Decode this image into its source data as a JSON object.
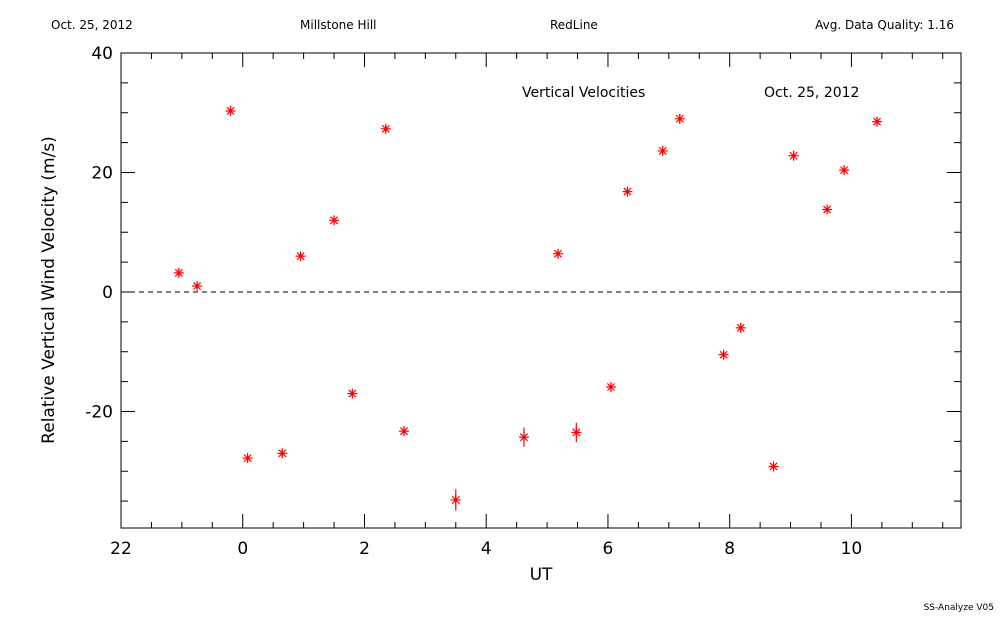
{
  "header": {
    "date": "Oct. 25, 2012",
    "site": "Millstone Hill",
    "instrument": "RedLine",
    "quality": "Avg. Data Quality: 1.16"
  },
  "footer": {
    "software": "SS-Analyze V05"
  },
  "chart_data": {
    "type": "scatter",
    "title": "Vertical Velocities",
    "subtitle": "Oct. 25, 2012",
    "xlabel": "UT",
    "ylabel": "Relative Vertical Wind Velocity (m/s)",
    "xlim": [
      -2.0,
      11.8
    ],
    "ylim": [
      -39.5,
      40
    ],
    "x_ticks": [
      22,
      0,
      2,
      4,
      6,
      8,
      10
    ],
    "y_ticks": [
      40,
      20,
      0,
      -20
    ],
    "reference_line": 0,
    "marker_color": "#ff0000",
    "series": [
      {
        "x": [
          -1.05,
          -0.75,
          -0.2,
          0.08,
          0.65,
          0.95,
          1.5,
          1.8,
          2.35,
          2.65,
          3.5,
          4.62,
          5.18,
          5.48,
          6.05,
          6.32,
          6.9,
          7.18,
          7.9,
          8.18,
          8.72,
          9.05,
          9.6,
          9.88,
          10.42
        ],
        "y": [
          3.2,
          1.0,
          30.3,
          -27.8,
          -27.0,
          6.0,
          12.0,
          -17.0,
          27.3,
          -23.3,
          -34.8,
          -24.3,
          6.4,
          -23.5,
          -15.9,
          16.8,
          23.6,
          29.0,
          -10.5,
          -6.0,
          -29.2,
          22.8,
          13.8,
          20.4,
          28.5
        ],
        "error": [
          0.6,
          0.5,
          0.6,
          0.6,
          0.6,
          0.5,
          0.6,
          0.6,
          0.6,
          0.6,
          1.8,
          1.6,
          0.6,
          1.6,
          0.7,
          0.7,
          0.6,
          0.8,
          0.7,
          0.8,
          0.6,
          0.6,
          0.6,
          0.6,
          0.7
        ]
      }
    ]
  }
}
